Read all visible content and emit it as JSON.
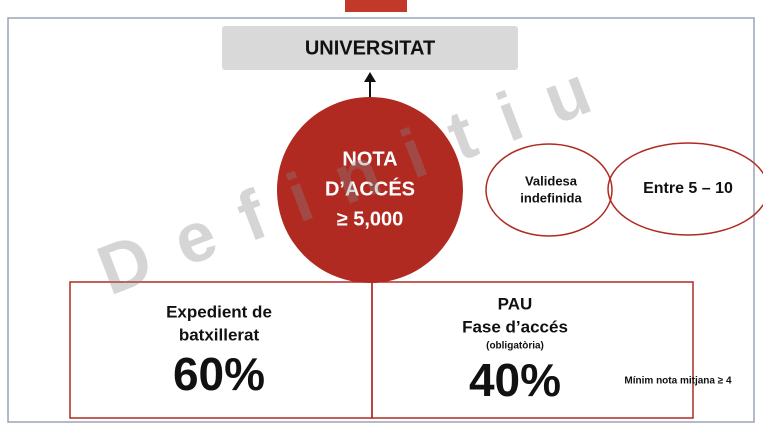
{
  "header": {
    "title": "UNIVERSITAT"
  },
  "center": {
    "lines": [
      "NOTA",
      "D’ACCÉS",
      "≥ 5,000"
    ]
  },
  "ellipses": [
    {
      "lines": [
        "Validesa",
        "indefinida"
      ]
    },
    {
      "lines": [
        "Entre 5 – 10"
      ]
    }
  ],
  "boxes": [
    {
      "lines": [
        "Expedient de",
        "batxillerat"
      ],
      "percent": "60%"
    },
    {
      "lines": [
        "PAU",
        "Fase d’accés"
      ],
      "note": "(obligatòria)",
      "percent": "40%"
    }
  ],
  "side_note": "Mínim nota mitjana ≥ 4",
  "watermark": "Definitiu"
}
